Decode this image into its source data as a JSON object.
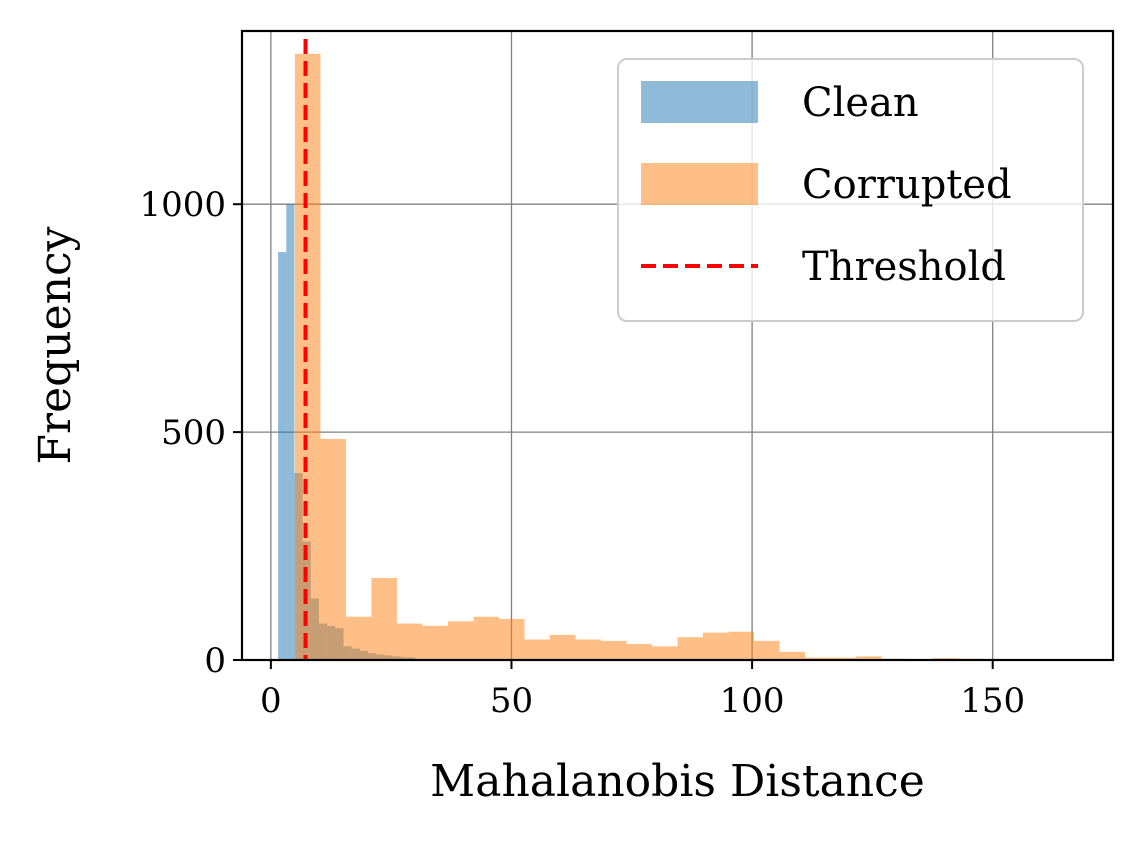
{
  "chart_data": {
    "type": "bar",
    "xlabel": "Mahalanobis Distance",
    "ylabel": "Frequency",
    "xlim": [
      -6,
      175
    ],
    "ylim": [
      0,
      1380
    ],
    "xticks": [
      0,
      50,
      100,
      150
    ],
    "yticks": [
      0,
      500,
      1000
    ],
    "grid": true,
    "legend_position": "top-right",
    "threshold": 7.2,
    "series": [
      {
        "name": "Clean",
        "color": "#1f77b4",
        "opacity": 0.5,
        "bins": [
          [
            1.5,
            3.2,
            895
          ],
          [
            3.2,
            4.9,
            1000
          ],
          [
            4.9,
            6.6,
            410
          ],
          [
            6.6,
            8.3,
            260
          ],
          [
            8.3,
            10.0,
            135
          ],
          [
            10.0,
            11.7,
            80
          ],
          [
            11.7,
            13.4,
            75
          ],
          [
            13.4,
            15.1,
            70
          ],
          [
            15.1,
            16.8,
            30
          ],
          [
            16.8,
            18.5,
            25
          ],
          [
            18.5,
            20.2,
            20
          ],
          [
            20.2,
            21.9,
            15
          ],
          [
            21.9,
            23.6,
            12
          ],
          [
            23.6,
            25.3,
            10
          ],
          [
            25.3,
            27.0,
            8
          ],
          [
            27.0,
            30.0,
            6
          ]
        ]
      },
      {
        "name": "Corrupted",
        "color": "#ff7f0e",
        "opacity": 0.5,
        "bins": [
          [
            5.0,
            10.3,
            1330
          ],
          [
            10.3,
            15.6,
            485
          ],
          [
            15.6,
            20.9,
            95
          ],
          [
            20.9,
            26.2,
            180
          ],
          [
            26.2,
            31.5,
            80
          ],
          [
            31.5,
            36.8,
            75
          ],
          [
            36.8,
            42.1,
            85
          ],
          [
            42.1,
            47.4,
            95
          ],
          [
            47.4,
            52.7,
            90
          ],
          [
            52.7,
            58.0,
            45
          ],
          [
            58.0,
            63.3,
            55
          ],
          [
            63.3,
            68.6,
            45
          ],
          [
            68.6,
            73.9,
            42
          ],
          [
            73.9,
            79.2,
            35
          ],
          [
            79.2,
            84.5,
            30
          ],
          [
            84.5,
            89.8,
            50
          ],
          [
            89.8,
            95.1,
            60
          ],
          [
            95.1,
            100.4,
            62
          ],
          [
            100.4,
            105.7,
            42
          ],
          [
            105.7,
            111.0,
            18
          ],
          [
            111.0,
            116.3,
            5
          ],
          [
            116.3,
            121.6,
            5
          ],
          [
            121.6,
            126.9,
            8
          ],
          [
            126.9,
            132.2,
            3
          ],
          [
            132.2,
            137.5,
            2
          ],
          [
            137.5,
            142.8,
            4
          ],
          [
            142.8,
            148.1,
            3
          ],
          [
            148.1,
            153.4,
            1
          ],
          [
            153.4,
            158.7,
            1
          ]
        ]
      }
    ],
    "legend": [
      {
        "label": "Clean",
        "kind": "patch",
        "color": "#1f77b4"
      },
      {
        "label": "Corrupted",
        "kind": "patch",
        "color": "#ff7f0e"
      },
      {
        "label": "Threshold",
        "kind": "dashed-line",
        "color": "#ff0000"
      }
    ]
  }
}
